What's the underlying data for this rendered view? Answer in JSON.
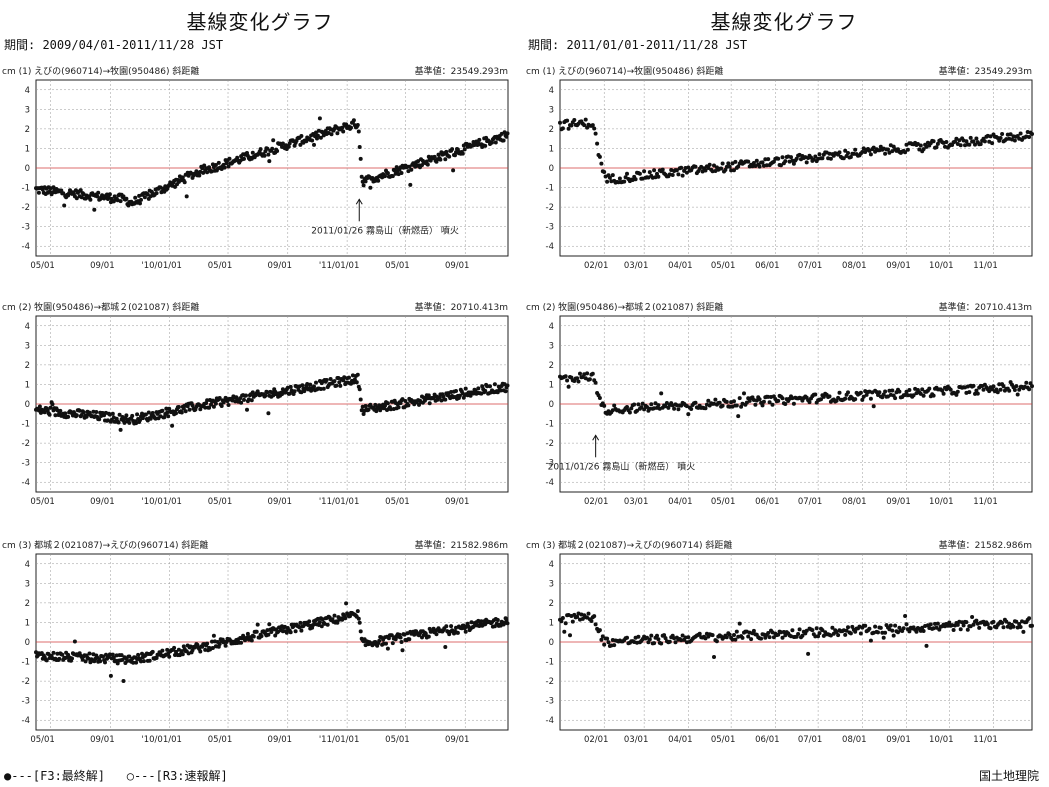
{
  "footer": {
    "legend_final": "●---[F3:最終解]",
    "legend_rapid": "○---[R3:速報解]",
    "credit": "国土地理院"
  },
  "panels": [
    {
      "title": "基線変化グラフ",
      "period": "期間: 2009/04/01-2011/11/28 JST"
    },
    {
      "title": "基線変化グラフ",
      "period": "期間: 2011/01/01-2011/11/28 JST"
    }
  ],
  "colors": {
    "dot": "#111111",
    "zero_line": "#d23b3b",
    "grid": "#999999"
  },
  "chart_data": [
    {
      "type": "scatter",
      "header_left": "cm (1) えびの(960714)→牧園(950486) 斜距離",
      "header_right": "基準値：23549.293m",
      "ylabel": "cm",
      "ylim": [
        -4.5,
        4.5
      ],
      "yticks": [
        "4",
        "3",
        "2",
        "1",
        "0",
        "-1",
        "-2",
        "-3",
        "-4"
      ],
      "xlim": [
        "2009-04-01",
        "2011-11-28"
      ],
      "xtick_labels": [
        {
          "date": "2009-05-01",
          "label": "05/01"
        },
        {
          "date": "2009-09-01",
          "label": "09/01"
        },
        {
          "date": "2010-01-01",
          "label": "'10/01/01"
        },
        {
          "date": "2010-05-01",
          "label": "05/01"
        },
        {
          "date": "2010-09-01",
          "label": "09/01"
        },
        {
          "date": "2011-01-01",
          "label": "'11/01/01"
        },
        {
          "date": "2011-05-01",
          "label": "05/01"
        },
        {
          "date": "2011-09-01",
          "label": "09/01"
        }
      ],
      "trend": [
        [
          "2009-04-01",
          -1.1
        ],
        [
          "2009-09-30",
          -1.6
        ],
        [
          "2009-10-15",
          -1.8
        ],
        [
          "2010-03-01",
          -0.2
        ],
        [
          "2011-01-24",
          2.3
        ],
        [
          "2011-02-01",
          -0.7
        ],
        [
          "2011-11-28",
          1.7
        ]
      ],
      "annotation": {
        "date": "2011-01-26",
        "text": "2011/01/26 霧島山（新燃岳） 噴火"
      }
    },
    {
      "type": "scatter",
      "header_left": "cm (2) 牧園(950486)→都城２(021087) 斜距離",
      "header_right": "基準値：20710.413m",
      "ylabel": "cm",
      "ylim": [
        -4.5,
        4.5
      ],
      "yticks": [
        "4",
        "3",
        "2",
        "1",
        "0",
        "-1",
        "-2",
        "-3",
        "-4"
      ],
      "xlim": [
        "2009-04-01",
        "2011-11-28"
      ],
      "xtick_labels": [
        {
          "date": "2009-05-01",
          "label": "05/01"
        },
        {
          "date": "2009-09-01",
          "label": "09/01"
        },
        {
          "date": "2010-01-01",
          "label": "'10/01/01"
        },
        {
          "date": "2010-05-01",
          "label": "05/01"
        },
        {
          "date": "2010-09-01",
          "label": "09/01"
        },
        {
          "date": "2011-01-01",
          "label": "'11/01/01"
        },
        {
          "date": "2011-05-01",
          "label": "05/01"
        },
        {
          "date": "2011-09-01",
          "label": "09/01"
        }
      ],
      "trend": [
        [
          "2009-04-01",
          -0.3
        ],
        [
          "2009-10-15",
          -0.8
        ],
        [
          "2010-03-01",
          -0.1
        ],
        [
          "2011-01-24",
          1.3
        ],
        [
          "2011-02-01",
          -0.3
        ],
        [
          "2011-11-28",
          0.9
        ]
      ],
      "annotation": null
    },
    {
      "type": "scatter",
      "header_left": "cm (3) 都城２(021087)→えびの(960714) 斜距離",
      "header_right": "基準値：21582.986m",
      "ylabel": "cm",
      "ylim": [
        -4.5,
        4.5
      ],
      "yticks": [
        "4",
        "3",
        "2",
        "1",
        "0",
        "-1",
        "-2",
        "-3",
        "-4"
      ],
      "xlim": [
        "2009-04-01",
        "2011-11-28"
      ],
      "xtick_labels": [
        {
          "date": "2009-05-01",
          "label": "05/01"
        },
        {
          "date": "2009-09-01",
          "label": "09/01"
        },
        {
          "date": "2010-01-01",
          "label": "'10/01/01"
        },
        {
          "date": "2010-05-01",
          "label": "05/01"
        },
        {
          "date": "2010-09-01",
          "label": "09/01"
        },
        {
          "date": "2011-01-01",
          "label": "'11/01/01"
        },
        {
          "date": "2011-05-01",
          "label": "05/01"
        },
        {
          "date": "2011-09-01",
          "label": "09/01"
        }
      ],
      "trend": [
        [
          "2009-04-01",
          -0.7
        ],
        [
          "2009-10-15",
          -0.9
        ],
        [
          "2010-03-01",
          -0.3
        ],
        [
          "2011-01-24",
          1.4
        ],
        [
          "2011-02-01",
          -0.1
        ],
        [
          "2011-11-28",
          1.1
        ]
      ],
      "annotation": null
    },
    {
      "type": "scatter",
      "header_left": "cm (1) えびの(960714)→牧園(950486) 斜距離",
      "header_right": "基準値：23549.293m",
      "ylabel": "cm",
      "ylim": [
        -4.5,
        4.5
      ],
      "yticks": [
        "4",
        "3",
        "2",
        "1",
        "0",
        "-1",
        "-2",
        "-3",
        "-4"
      ],
      "xlim": [
        "2011-01-01",
        "2011-11-28"
      ],
      "xtick_labels": [
        {
          "date": "2011-02-01",
          "label": "02/01"
        },
        {
          "date": "2011-03-01",
          "label": "03/01"
        },
        {
          "date": "2011-04-01",
          "label": "04/01"
        },
        {
          "date": "2011-05-01",
          "label": "05/01"
        },
        {
          "date": "2011-06-01",
          "label": "06/01"
        },
        {
          "date": "2011-07-01",
          "label": "07/01"
        },
        {
          "date": "2011-08-01",
          "label": "08/01"
        },
        {
          "date": "2011-09-01",
          "label": "09/01"
        },
        {
          "date": "2011-10-01",
          "label": "10/01"
        },
        {
          "date": "2011-11-01",
          "label": "11/01"
        }
      ],
      "trend": [
        [
          "2011-01-01",
          2.2
        ],
        [
          "2011-01-24",
          2.3
        ],
        [
          "2011-02-01",
          -0.6
        ],
        [
          "2011-11-28",
          1.7
        ]
      ],
      "annotation": null
    },
    {
      "type": "scatter",
      "header_left": "cm (2) 牧園(950486)→都城２(021087) 斜距離",
      "header_right": "基準値：20710.413m",
      "ylabel": "cm",
      "ylim": [
        -4.5,
        4.5
      ],
      "yticks": [
        "4",
        "3",
        "2",
        "1",
        "0",
        "-1",
        "-2",
        "-3",
        "-4"
      ],
      "xlim": [
        "2011-01-01",
        "2011-11-28"
      ],
      "xtick_labels": [
        {
          "date": "2011-02-01",
          "label": "02/01"
        },
        {
          "date": "2011-03-01",
          "label": "03/01"
        },
        {
          "date": "2011-04-01",
          "label": "04/01"
        },
        {
          "date": "2011-05-01",
          "label": "05/01"
        },
        {
          "date": "2011-06-01",
          "label": "06/01"
        },
        {
          "date": "2011-07-01",
          "label": "07/01"
        },
        {
          "date": "2011-08-01",
          "label": "08/01"
        },
        {
          "date": "2011-09-01",
          "label": "09/01"
        },
        {
          "date": "2011-10-01",
          "label": "10/01"
        },
        {
          "date": "2011-11-01",
          "label": "11/01"
        }
      ],
      "trend": [
        [
          "2011-01-01",
          1.3
        ],
        [
          "2011-01-24",
          1.4
        ],
        [
          "2011-02-01",
          -0.3
        ],
        [
          "2011-11-28",
          0.9
        ]
      ],
      "annotation": {
        "date": "2011-01-26",
        "text": "2011/01/26 霧島山（新燃岳） 噴火"
      }
    },
    {
      "type": "scatter",
      "header_left": "cm (3) 都城２(021087)→えびの(960714) 斜距離",
      "header_right": "基準値：21582.986m",
      "ylabel": "cm",
      "ylim": [
        -4.5,
        4.5
      ],
      "yticks": [
        "4",
        "3",
        "2",
        "1",
        "0",
        "-1",
        "-2",
        "-3",
        "-4"
      ],
      "xlim": [
        "2011-01-01",
        "2011-11-28"
      ],
      "xtick_labels": [
        {
          "date": "2011-02-01",
          "label": "02/01"
        },
        {
          "date": "2011-03-01",
          "label": "03/01"
        },
        {
          "date": "2011-04-01",
          "label": "04/01"
        },
        {
          "date": "2011-05-01",
          "label": "05/01"
        },
        {
          "date": "2011-06-01",
          "label": "06/01"
        },
        {
          "date": "2011-07-01",
          "label": "07/01"
        },
        {
          "date": "2011-08-01",
          "label": "08/01"
        },
        {
          "date": "2011-09-01",
          "label": "09/01"
        },
        {
          "date": "2011-10-01",
          "label": "10/01"
        },
        {
          "date": "2011-11-01",
          "label": "11/01"
        }
      ],
      "trend": [
        [
          "2011-01-01",
          1.2
        ],
        [
          "2011-01-24",
          1.3
        ],
        [
          "2011-02-01",
          0.0
        ],
        [
          "2011-11-28",
          1.0
        ]
      ],
      "annotation": null
    }
  ]
}
